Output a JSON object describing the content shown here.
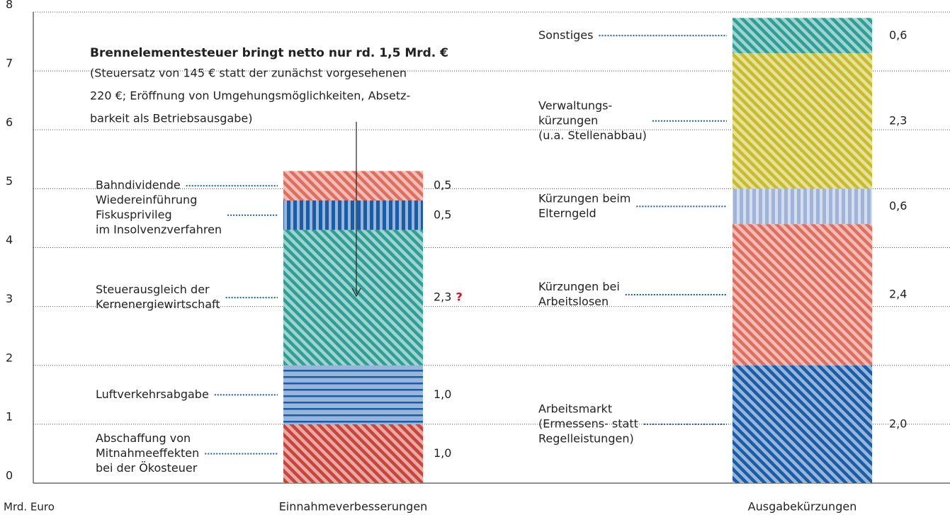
{
  "chart_data": {
    "type": "stacked-bar",
    "annotation": {
      "title": "Brennelementesteuer bringt netto nur rd. 1,5 Mrd. €",
      "lines": [
        "(Steuersatz von 145 € statt der zunächst vorgesehenen",
        "220 €; Eröffnung von Umgehungsmöglichkeiten, Absetz-",
        "barkeit als Betriebsausgabe)"
      ]
    },
    "ylabel": "Mrd. Euro",
    "ylim": [
      0,
      8
    ],
    "yticks": [
      0,
      1,
      2,
      3,
      4,
      5,
      6,
      7,
      8
    ],
    "grid": true,
    "categories": [
      "Einnahmeverbesserungen",
      "Ausgabekürzungen"
    ],
    "stacks": [
      {
        "segments": [
          {
            "label": [
              "Abschaffung von",
              "Mitnahmeeffekten",
              "bei der Ökosteuer"
            ],
            "value": 1.0,
            "value_label": "1,0",
            "color": "#c9443a",
            "pattern": "diagonal"
          },
          {
            "label": [
              "Luftverkehrsabgabe"
            ],
            "value": 1.0,
            "value_label": "1,0",
            "color": "#1a5ca8",
            "pattern": "horizontal"
          },
          {
            "label": [
              "Steuerausgleich der",
              "Kernenergiewirtschaft"
            ],
            "value": 2.3,
            "value_label": "2,3",
            "note": "?",
            "color": "#2f9f96",
            "pattern": "diagonal"
          },
          {
            "label": [
              "Wiedereinführung",
              "Fiskusprivileg",
              "im Insolvenzverfahren"
            ],
            "value": 0.5,
            "value_label": "0,5",
            "color": "#1a5ca8",
            "pattern": "vertical"
          },
          {
            "label": [
              "Bahndividende"
            ],
            "value": 0.5,
            "value_label": "0,5",
            "color": "#de6e5e",
            "pattern": "diagonal"
          }
        ]
      },
      {
        "segments": [
          {
            "label": [
              "Arbeitsmarkt",
              "(Ermessens- statt",
              "Regelleistungen)"
            ],
            "value": 2.0,
            "value_label": "2,0",
            "color": "#1a5ca8",
            "pattern": "diagonal"
          },
          {
            "label": [
              "Kürzungen bei",
              "Arbeitslosen"
            ],
            "value": 2.4,
            "value_label": "2,4",
            "color": "#de6e5e",
            "pattern": "diagonal"
          },
          {
            "label": [
              "Kürzungen beim",
              "Elterngeld"
            ],
            "value": 0.6,
            "value_label": "0,6",
            "color": "#9fb4d8",
            "pattern": "vertical"
          },
          {
            "label": [
              "Verwaltungs-",
              "kürzungen",
              "(u.a. Stellenabbau)"
            ],
            "value": 2.3,
            "value_label": "2,3",
            "color": "#c7bd2a",
            "pattern": "diagonal"
          },
          {
            "label": [
              "Sonstiges"
            ],
            "value": 0.6,
            "value_label": "0,6",
            "color": "#2f9f96",
            "pattern": "diagonal"
          }
        ]
      }
    ]
  }
}
